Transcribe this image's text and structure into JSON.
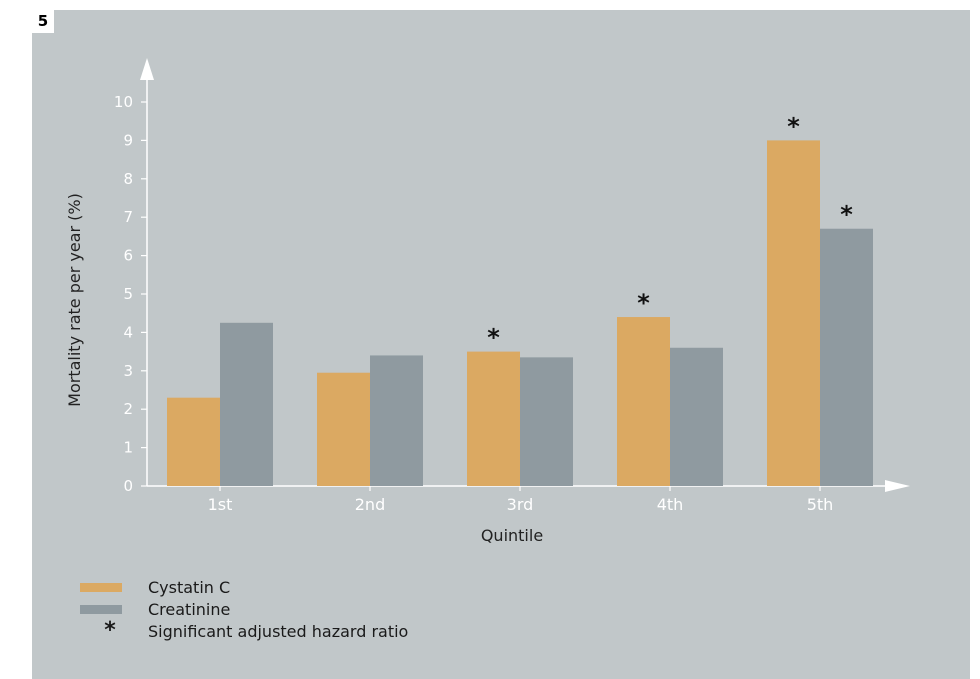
{
  "figure": {
    "number": "5"
  },
  "chart_data": {
    "type": "bar",
    "categories": [
      "1st",
      "2nd",
      "3rd",
      "4th",
      "5th"
    ],
    "series": [
      {
        "name": "Cystatin C",
        "color": "#dba962",
        "values": [
          2.3,
          2.95,
          3.5,
          4.4,
          9.0
        ],
        "significant": [
          false,
          false,
          true,
          true,
          true
        ]
      },
      {
        "name": "Creatinine",
        "color": "#8f9aa0",
        "values": [
          4.25,
          3.4,
          3.35,
          3.6,
          6.7
        ],
        "significant": [
          false,
          false,
          false,
          false,
          true
        ]
      }
    ],
    "xlabel": "Quintile",
    "ylabel": "Mortality rate per year (%)",
    "ylim": [
      0,
      10
    ],
    "yticks": [
      0,
      1,
      2,
      3,
      4,
      5,
      6,
      7,
      8,
      9,
      10
    ],
    "grid": false,
    "significance_marker": "*",
    "legend": {
      "placement": "bottom-left",
      "items": [
        {
          "label": "Cystatin C",
          "type": "swatch",
          "color": "#dba962"
        },
        {
          "label": "Creatinine",
          "type": "swatch",
          "color": "#8f9aa0"
        },
        {
          "label": "Significant adjusted hazard ratio",
          "type": "marker",
          "symbol": "*"
        }
      ]
    }
  }
}
